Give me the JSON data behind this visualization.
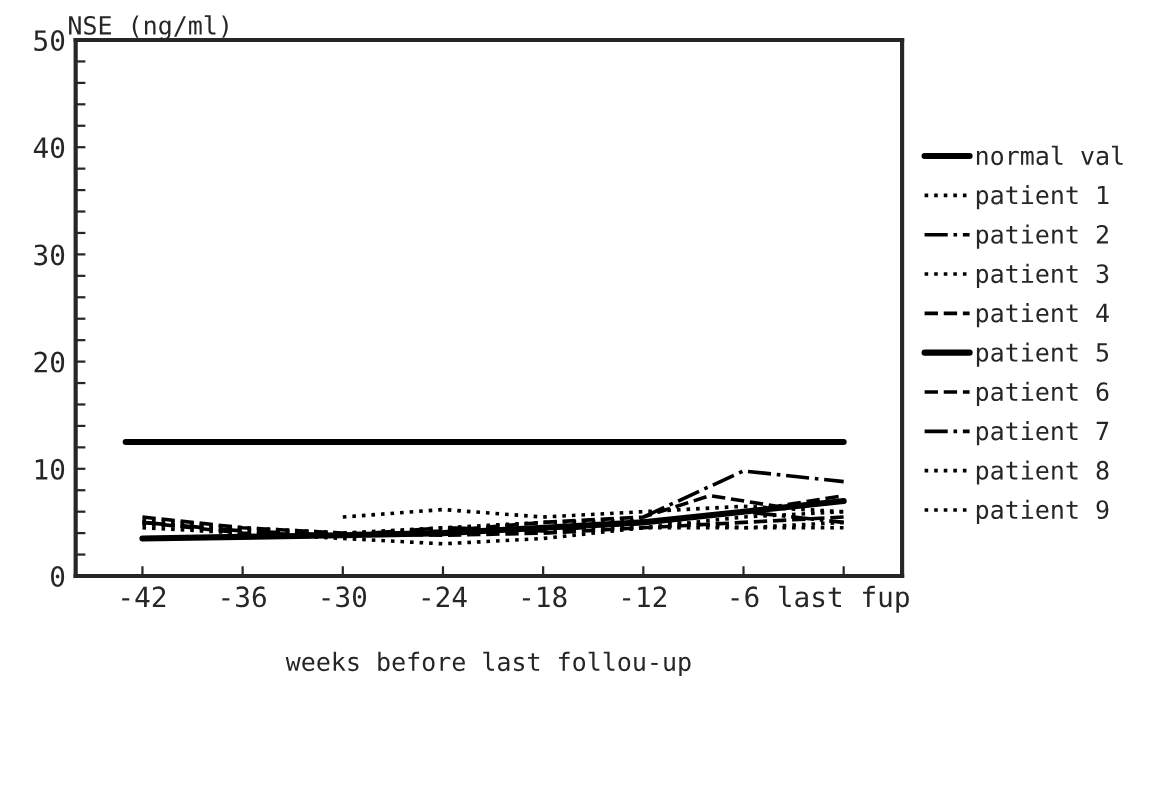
{
  "chart_data": {
    "type": "line",
    "ylabel": "NSE (ng/ml)",
    "xlabel": "weeks before last follou-up",
    "xlim": [
      -46,
      3.5
    ],
    "xticks": [
      -42,
      -36,
      -30,
      -24,
      -18,
      -12,
      -6,
      {
        "value": 0,
        "label": "last fup"
      }
    ],
    "ylim": [
      0,
      50
    ],
    "yticks": [
      0,
      {
        "value": 2,
        "label": null
      },
      {
        "value": 4,
        "label": null
      },
      {
        "value": 6,
        "label": null
      },
      {
        "value": 8,
        "label": null
      },
      10,
      {
        "value": 12,
        "label": null
      },
      {
        "value": 14,
        "label": null
      },
      {
        "value": 16,
        "label": null
      },
      {
        "value": 18,
        "label": null
      },
      20,
      {
        "value": 22,
        "label": null
      },
      {
        "value": 24,
        "label": null
      },
      {
        "value": 26,
        "label": null
      },
      {
        "value": 28,
        "label": null
      },
      30,
      {
        "value": 32,
        "label": null
      },
      {
        "value": 34,
        "label": null
      },
      {
        "value": 36,
        "label": null
      },
      {
        "value": 38,
        "label": null
      },
      40,
      {
        "value": 42,
        "label": null
      },
      {
        "value": 44,
        "label": null
      },
      {
        "value": 46,
        "label": null
      },
      {
        "value": 48,
        "label": null
      },
      50
    ],
    "grid": false,
    "legend": "right",
    "marker": "none",
    "series": [
      {
        "name": "normal val",
        "color": "#000000",
        "line_style": "solid",
        "x": [
          -43,
          0
        ],
        "values": [
          12.5,
          12.5
        ]
      },
      {
        "name": "patient 1",
        "color": "#000000",
        "line_style": "dotted",
        "x": [
          -30,
          -24,
          -18,
          -12,
          -6,
          0
        ],
        "values": [
          5.5,
          6.2,
          5.5,
          6,
          6.5,
          6
        ]
      },
      {
        "name": "patient 2",
        "color": "#000000",
        "line_style": "dashdot",
        "x": [
          -12,
          -6,
          0
        ],
        "values": [
          5.5,
          9.8,
          8.8
        ]
      },
      {
        "name": "patient 3",
        "color": "#000000",
        "line_style": "dotted",
        "x": [
          -42,
          -30,
          -24,
          -18,
          -12,
          0
        ],
        "values": [
          4.5,
          3.5,
          3,
          3.5,
          4.5,
          4.5
        ]
      },
      {
        "name": "patient 4",
        "color": "#000000",
        "line_style": "dashed",
        "x": [
          -42,
          -36,
          -30,
          -24,
          -18,
          -12,
          -8,
          -4,
          0
        ],
        "values": [
          5,
          4,
          3.8,
          4.2,
          5,
          5.5,
          7.5,
          6.5,
          7.5
        ]
      },
      {
        "name": "patient 5",
        "color": "#000000",
        "line_style": "solid",
        "x": [
          -42,
          -30,
          -24,
          -18,
          -12,
          -6,
          0
        ],
        "values": [
          3.5,
          3.8,
          4,
          4.5,
          5,
          6,
          7
        ]
      },
      {
        "name": "patient 6",
        "color": "#000000",
        "line_style": "dashed",
        "x": [
          -42,
          -36,
          -30,
          -24,
          -18,
          -12,
          -6,
          0
        ],
        "values": [
          5.5,
          4.5,
          4,
          3.8,
          4,
          4.5,
          5,
          5.5
        ]
      },
      {
        "name": "patient 7",
        "color": "#000000",
        "line_style": "dashdot",
        "x": [
          -42,
          -36,
          -30,
          -24,
          -18,
          -12,
          -6,
          0
        ],
        "values": [
          5,
          4.2,
          3.8,
          4.5,
          4.2,
          5,
          6,
          5
        ]
      },
      {
        "name": "patient 8",
        "color": "#000000",
        "line_style": "dotted",
        "x": [
          -42,
          -30,
          -24,
          -18,
          -12,
          -6,
          0
        ],
        "values": [
          4.8,
          4,
          4.5,
          5,
          5.2,
          4.5,
          5
        ]
      },
      {
        "name": "patient 9",
        "color": "#000000",
        "line_style": "dotted",
        "x": [
          -42,
          -36,
          -30,
          -24,
          -18,
          -12,
          -6,
          0
        ],
        "values": [
          5.2,
          4.5,
          4,
          4,
          4.5,
          4.5,
          5.5,
          6
        ]
      }
    ]
  }
}
